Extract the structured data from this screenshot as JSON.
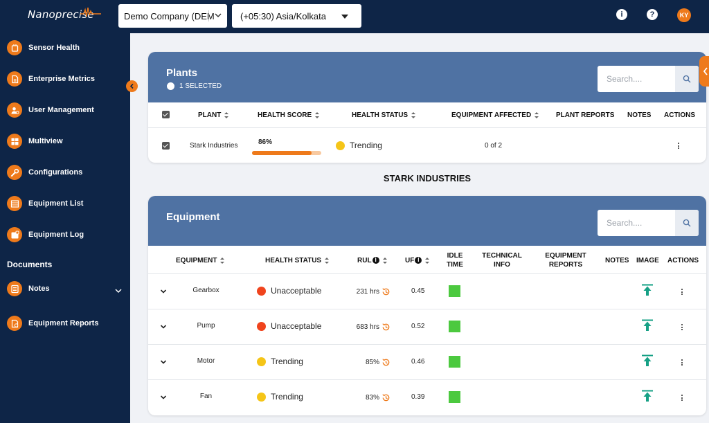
{
  "app": {
    "logo_text": "Nanoprecise",
    "company_select": "Demo Company (DEM",
    "timezone_select": "(+05:30) Asia/Kolkata",
    "info_icon": "i",
    "help_icon": "?",
    "avatar_initials": "KY"
  },
  "sidebar": {
    "items": [
      {
        "label": "Sensor Health",
        "icon": "sensor-icon"
      },
      {
        "label": "Enterprise Metrics",
        "icon": "document-icon"
      },
      {
        "label": "User Management",
        "icon": "user-icon"
      },
      {
        "label": "Multiview",
        "icon": "grid-icon"
      },
      {
        "label": "Configurations",
        "icon": "wrench-icon"
      },
      {
        "label": "Equipment List",
        "icon": "list-icon"
      },
      {
        "label": "Equipment Log",
        "icon": "log-icon"
      }
    ],
    "section_documents": "Documents",
    "doc_items": [
      {
        "label": "Notes",
        "icon": "notes-icon"
      },
      {
        "label": "Equipment Reports",
        "icon": "report-icon"
      }
    ]
  },
  "plants": {
    "title": "Plants",
    "selected_text": "1 SELECTED",
    "search_placeholder": "Search....",
    "columns": [
      "PLANT",
      "HEALTH SCORE",
      "HEALTH STATUS",
      "EQUIPMENT AFFECTED",
      "PLANT REPORTS",
      "NOTES",
      "ACTIONS"
    ],
    "rows": [
      {
        "plant": "Stark Industries",
        "health_score": "86%",
        "health_score_value": 86,
        "health_status": "Trending",
        "status_color": "#f5c518",
        "equipment_affected": "0 of 2"
      }
    ]
  },
  "section_title": "STARK INDUSTRIES",
  "equipment": {
    "title": "Equipment",
    "search_placeholder": "Search....",
    "columns": {
      "equipment": "EQUIPMENT",
      "health_status": "HEALTH STATUS",
      "rul": "RUL",
      "uf": "UF",
      "idle_time_1": "IDLE",
      "idle_time_2": "TIME",
      "technical_info_1": "TECHNICAL",
      "technical_info_2": "INFO",
      "equipment_reports_1": "EQUIPMENT",
      "equipment_reports_2": "REPORTS",
      "notes": "NOTES",
      "image": "IMAGE",
      "actions": "ACTIONS"
    },
    "rows": [
      {
        "name": "Gearbox",
        "status": "Unacceptable",
        "status_color": "#f0441d",
        "rul": "231 hrs",
        "uf": "0.45"
      },
      {
        "name": "Pump",
        "status": "Unacceptable",
        "status_color": "#f0441d",
        "rul": "683 hrs",
        "uf": "0.52"
      },
      {
        "name": "Motor",
        "status": "Trending",
        "status_color": "#f5c518",
        "rul": "85%",
        "uf": "0.46"
      },
      {
        "name": "Fan",
        "status": "Trending",
        "status_color": "#f5c518",
        "rul": "83%",
        "uf": "0.39"
      }
    ]
  },
  "colors": {
    "accent": "#ee7a1b",
    "nav_bg": "#0e2547",
    "card_head": "#4f72a3",
    "idle_green": "#4cc93f",
    "upload_teal": "#16a085"
  }
}
